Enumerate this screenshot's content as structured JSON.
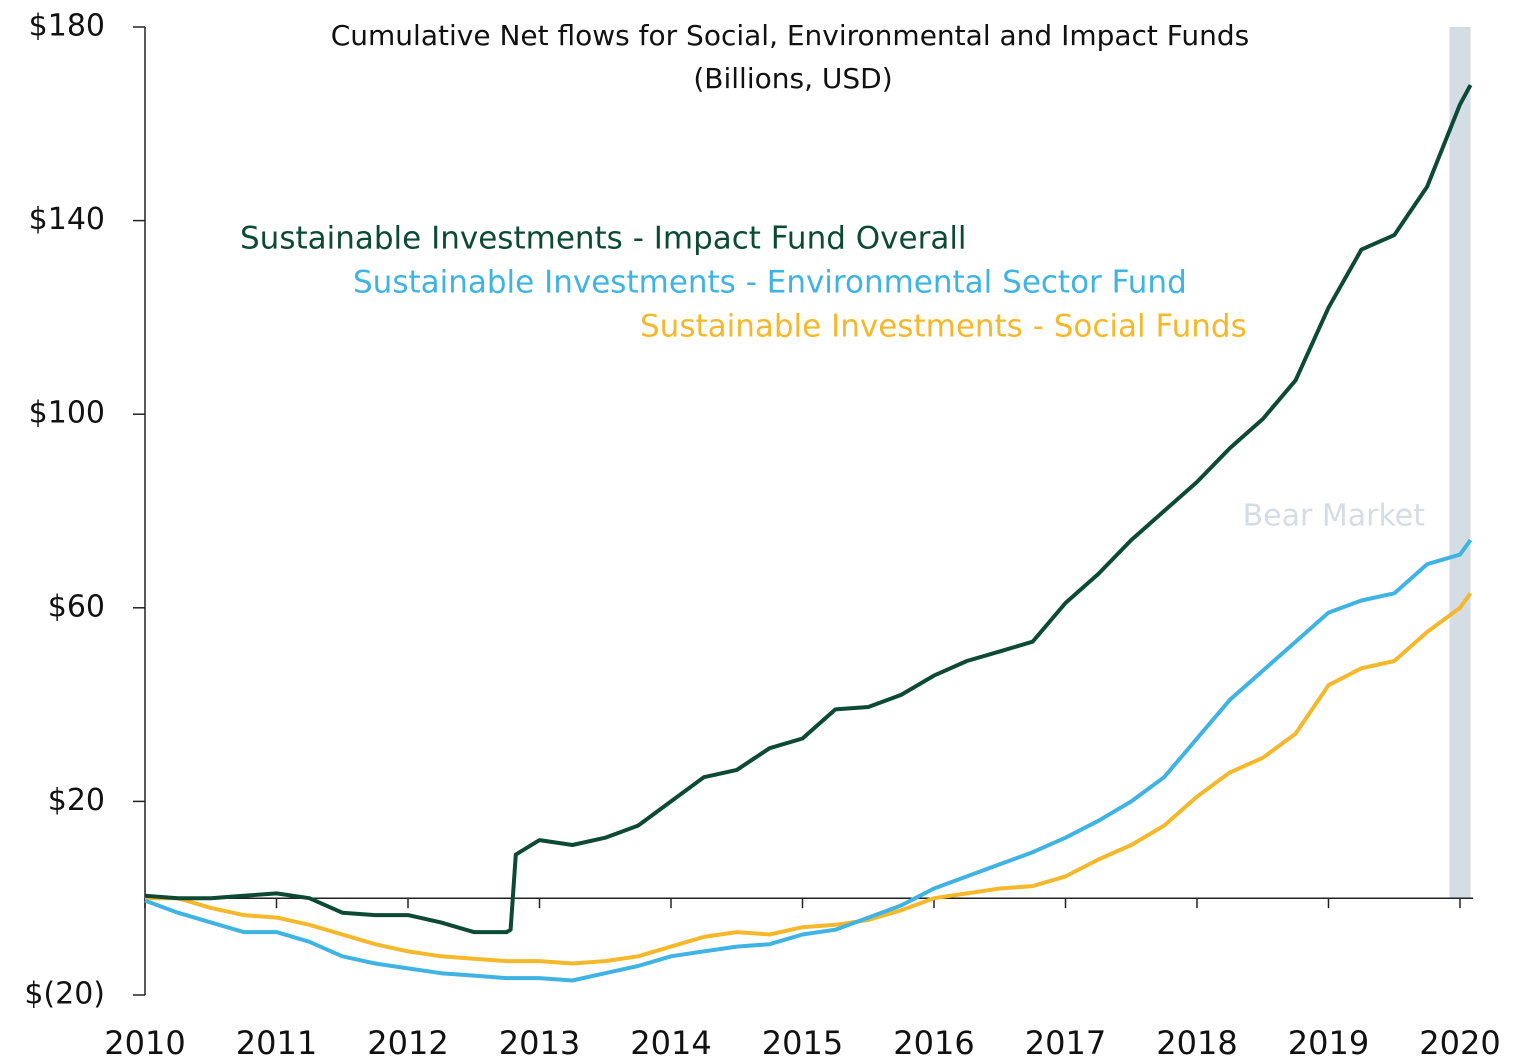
{
  "chart_data": {
    "type": "line",
    "title": "Cumulative Net flows for Social, Environmental and Impact Funds",
    "subtitle": "(Billions, USD)",
    "x": [
      2010,
      2010.25,
      2010.5,
      2010.75,
      2011,
      2011.25,
      2011.5,
      2011.75,
      2012,
      2012.25,
      2012.5,
      2012.75,
      2012.78,
      2012.82,
      2013,
      2013.25,
      2013.5,
      2013.75,
      2014,
      2014.25,
      2014.5,
      2014.75,
      2015,
      2015.25,
      2015.5,
      2015.75,
      2016,
      2016.25,
      2016.5,
      2016.75,
      2017,
      2017.25,
      2017.5,
      2017.75,
      2018,
      2018.25,
      2018.5,
      2018.75,
      2019,
      2019.25,
      2019.5,
      2019.75,
      2020,
      2020.08
    ],
    "series": [
      {
        "name": "Sustainable Investments - Impact Fund Overall",
        "color": "#0d4a36",
        "values": [
          0.5,
          0,
          0,
          0.5,
          1,
          0,
          -3,
          -3.5,
          -3.5,
          -5,
          -7,
          -7,
          -6.5,
          9,
          12,
          11,
          12.5,
          15,
          20,
          25,
          26.5,
          31,
          33,
          39,
          39.5,
          42,
          46,
          49,
          51,
          53,
          61,
          67,
          74,
          80,
          86,
          93,
          99,
          107,
          122,
          134,
          137,
          147,
          164,
          168
        ]
      },
      {
        "name": "Sustainable Investments - Environmental Sector Fund",
        "color": "#3fb3e3",
        "values": [
          -0.5,
          -3,
          -5,
          -7,
          -7,
          -9,
          -12,
          -13.5,
          -14.5,
          -15.5,
          -16,
          -16.5,
          -16.5,
          -16.5,
          -16.5,
          -17,
          -15.5,
          -14,
          -12,
          -11,
          -10,
          -9.5,
          -7.5,
          -6.5,
          -4,
          -1.5,
          2,
          4.5,
          7,
          9.5,
          12.5,
          16,
          20,
          25,
          33,
          41,
          47,
          53,
          59,
          61.5,
          63,
          69,
          71,
          74
        ]
      },
      {
        "name": "Sustainable Investments - Social Funds",
        "color": "#f6b82b",
        "values": [
          0,
          0,
          -2,
          -3.5,
          -4,
          -5.5,
          -7.5,
          -9.5,
          -11,
          -12,
          -12.5,
          -13,
          -13,
          -13,
          -13,
          -13.5,
          -13,
          -12,
          -10,
          -8,
          -7,
          -7.5,
          -6,
          -5.5,
          -4.5,
          -2.5,
          0,
          1,
          2,
          2.5,
          4.5,
          8,
          11,
          15,
          21,
          26,
          29,
          34,
          44,
          47.5,
          49,
          55,
          60,
          63
        ]
      }
    ],
    "xlim": [
      2010,
      2020.1
    ],
    "xticks": [
      2010,
      2011,
      2012,
      2013,
      2014,
      2015,
      2016,
      2017,
      2018,
      2019,
      2020
    ],
    "ylim": [
      -20,
      180
    ],
    "yticks": [
      {
        "value": -20,
        "label": "$(20)"
      },
      {
        "value": 20,
        "label": "$20"
      },
      {
        "value": 60,
        "label": "$60"
      },
      {
        "value": 100,
        "label": "$100"
      },
      {
        "value": 140,
        "label": "$140"
      },
      {
        "value": 180,
        "label": "$180"
      }
    ],
    "shaded_region": {
      "x": [
        2019.92,
        2020.08
      ],
      "label": "Bear Market",
      "color": "#d5dde4"
    }
  }
}
